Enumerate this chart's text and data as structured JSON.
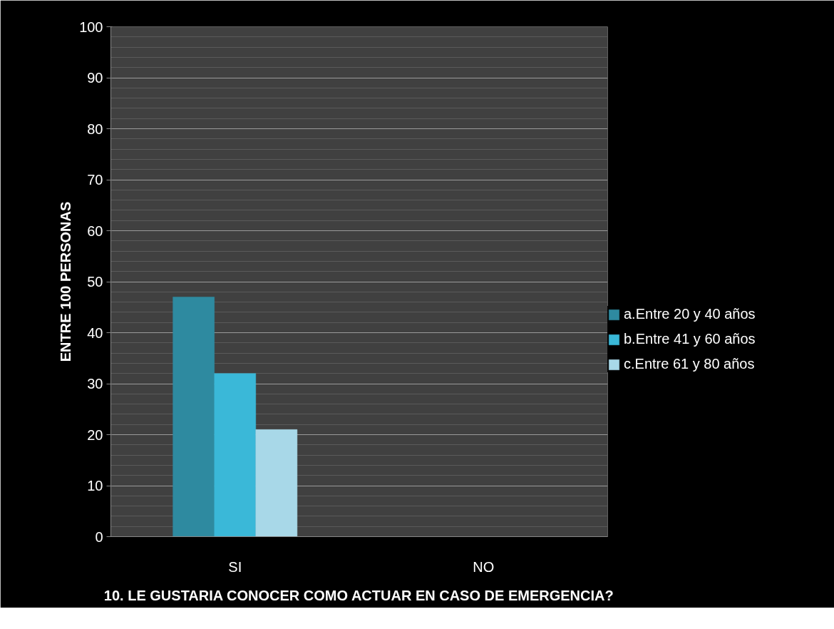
{
  "chart_data": {
    "type": "bar",
    "xlabel": "10. LE GUSTARIA CONOCER COMO ACTUAR EN CASO DE EMERGENCIA?",
    "ylabel": "ENTRE 100 PERSONAS",
    "categories": [
      "SI",
      "NO"
    ],
    "series": [
      {
        "name": "a.Entre 20 y 40 años",
        "color": "#2e8aa0",
        "values": [
          47,
          0
        ]
      },
      {
        "name": "b.Entre 41 y 60 años",
        "color": "#3ab8d8",
        "values": [
          32,
          0
        ]
      },
      {
        "name": "c.Entre 61 y 80 años",
        "color": "#a8d8e8",
        "values": [
          21,
          0
        ]
      }
    ],
    "ylim": [
      0,
      100
    ],
    "yticks": [
      0,
      10,
      20,
      30,
      40,
      50,
      60,
      70,
      80,
      90,
      100
    ],
    "grid": "y",
    "legend": "right"
  }
}
